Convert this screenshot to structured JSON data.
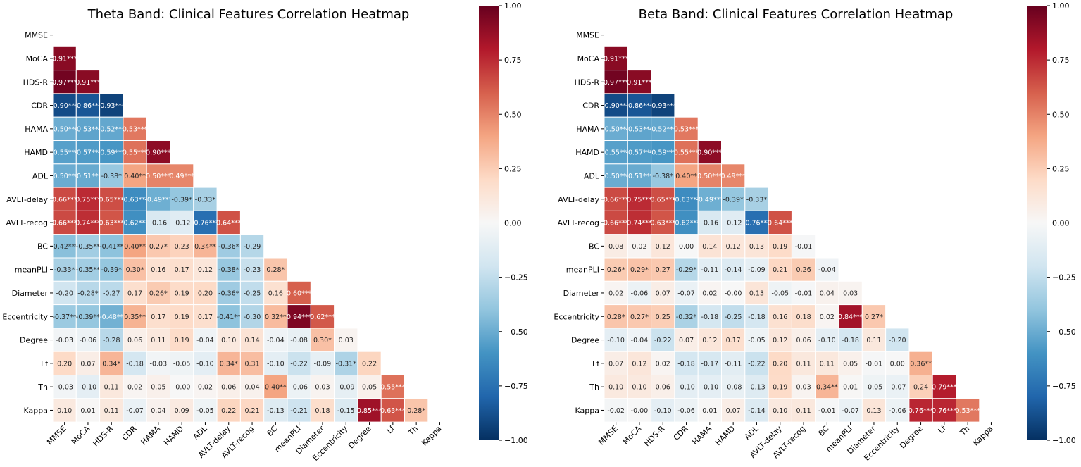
{
  "chart_data": [
    {
      "type": "heatmap",
      "title": "Theta Band: Clinical Features Correlation Heatmap",
      "labels": [
        "MMSE",
        "MoCA",
        "HDS-R",
        "CDR",
        "HAMA",
        "HAMD",
        "ADL",
        "AVLT-delay",
        "AVLT-recog",
        "BC",
        "meanPLI",
        "Diameter",
        "Eccentricity",
        "Degree",
        "Lf",
        "Th",
        "Kappa"
      ],
      "colormap": "RdBu_r",
      "vlim": [
        -1,
        1
      ],
      "colorbar_ticks": [
        "1.00",
        "0.75",
        "0.50",
        "0.25",
        "0.00",
        "−0.25",
        "−0.50",
        "−0.75",
        "−1.00"
      ],
      "lower_triangle_annotations": [
        [],
        [
          "0.91***"
        ],
        [
          "0.97***",
          "0.91***"
        ],
        [
          "-0.90***",
          "-0.86***",
          "-0.93***"
        ],
        [
          "-0.50***",
          "-0.53***",
          "-0.52***",
          "0.53***"
        ],
        [
          "-0.55***",
          "-0.57***",
          "-0.59***",
          "0.55***",
          "0.90***"
        ],
        [
          "-0.50***",
          "-0.51***",
          "-0.38*",
          "0.40**",
          "0.50***",
          "0.49***"
        ],
        [
          "0.66***",
          "0.75***",
          "0.65***",
          "-0.63***",
          "-0.49***",
          "-0.39*",
          "-0.33*"
        ],
        [
          "0.66***",
          "0.74***",
          "0.63***",
          "-0.62***",
          "-0.16",
          "-0.12",
          "-0.76***",
          "0.64***"
        ],
        [
          "-0.42***",
          "-0.35**",
          "-0.41**",
          "0.40**",
          "0.27*",
          "0.23",
          "0.34**",
          "-0.36*",
          "-0.29"
        ],
        [
          "-0.33*",
          "-0.35**",
          "-0.39*",
          "0.30*",
          "0.16",
          "0.17",
          "0.12",
          "-0.38*",
          "-0.23",
          "0.28*"
        ],
        [
          "-0.20",
          "-0.28*",
          "-0.27",
          "0.17",
          "0.26*",
          "0.19",
          "0.20",
          "-0.36*",
          "-0.25",
          "0.16",
          "0.60***"
        ],
        [
          "-0.37**",
          "-0.39**",
          "-0.48**",
          "0.35**",
          "0.17",
          "0.19",
          "0.17",
          "-0.41**",
          "-0.30",
          "0.32**",
          "0.94***",
          "0.62***"
        ],
        [
          "-0.03",
          "-0.06",
          "-0.28",
          "0.06",
          "0.11",
          "0.19",
          "-0.04",
          "0.10",
          "0.14",
          "-0.04",
          "-0.08",
          "0.30*",
          "0.03"
        ],
        [
          "0.20",
          "0.07",
          "0.34*",
          "-0.18",
          "-0.03",
          "-0.05",
          "-0.10",
          "0.34*",
          "0.31",
          "-0.10",
          "-0.22",
          "-0.09",
          "-0.31*",
          "0.22"
        ],
        [
          "-0.03",
          "-0.10",
          "0.11",
          "0.02",
          "0.05",
          "-0.00",
          "0.02",
          "0.06",
          "0.04",
          "0.40**",
          "-0.06",
          "0.03",
          "-0.09",
          "0.05",
          "0.55***"
        ],
        [
          "0.10",
          "0.01",
          "0.11",
          "-0.07",
          "0.04",
          "0.09",
          "-0.05",
          "0.22",
          "0.21",
          "-0.13",
          "-0.21",
          "0.18",
          "-0.15",
          "0.85***",
          "0.63***",
          "0.28*"
        ]
      ]
    },
    {
      "type": "heatmap",
      "title": "Beta Band: Clinical Features Correlation Heatmap",
      "labels": [
        "MMSE",
        "MoCA",
        "HDS-R",
        "CDR",
        "HAMA",
        "HAMD",
        "ADL",
        "AVLT-delay",
        "AVLT-recog",
        "BC",
        "meanPLI",
        "Diameter",
        "Eccentricity",
        "Degree",
        "Lf",
        "Th",
        "Kappa"
      ],
      "colormap": "RdBu_r",
      "vlim": [
        -1,
        1
      ],
      "colorbar_ticks": [
        "1.00",
        "0.75",
        "0.50",
        "0.25",
        "0.00",
        "−0.25",
        "−0.50",
        "−0.75",
        "−1.00"
      ],
      "lower_triangle_annotations": [
        [],
        [
          "0.91***"
        ],
        [
          "0.97***",
          "0.91***"
        ],
        [
          "-0.90***",
          "-0.86***",
          "-0.93***"
        ],
        [
          "-0.50***",
          "-0.53***",
          "-0.52***",
          "0.53***"
        ],
        [
          "-0.55***",
          "-0.57***",
          "-0.59***",
          "0.55***",
          "0.90***"
        ],
        [
          "-0.50***",
          "-0.51***",
          "-0.38*",
          "0.40**",
          "0.50***",
          "0.49***"
        ],
        [
          "0.66***",
          "0.75***",
          "0.65***",
          "-0.63***",
          "-0.49***",
          "-0.39*",
          "-0.33*"
        ],
        [
          "0.66***",
          "0.74***",
          "0.63***",
          "-0.62***",
          "-0.16",
          "-0.12",
          "-0.76***",
          "0.64***"
        ],
        [
          "0.08",
          "0.02",
          "0.12",
          "0.00",
          "0.14",
          "0.12",
          "0.13",
          "0.19",
          "-0.01"
        ],
        [
          "0.26*",
          "0.29*",
          "0.27",
          "-0.29*",
          "-0.11",
          "-0.14",
          "-0.09",
          "0.21",
          "0.26",
          "-0.04"
        ],
        [
          "0.02",
          "-0.06",
          "0.07",
          "-0.07",
          "0.02",
          "-0.00",
          "0.13",
          "-0.05",
          "-0.01",
          "0.04",
          "0.03"
        ],
        [
          "0.28*",
          "0.27*",
          "0.25",
          "-0.32*",
          "-0.18",
          "-0.25",
          "-0.18",
          "0.16",
          "0.18",
          "0.02",
          "0.84***",
          "0.27*"
        ],
        [
          "-0.10",
          "-0.04",
          "-0.22",
          "0.07",
          "0.12",
          "0.17",
          "-0.05",
          "0.12",
          "0.06",
          "-0.10",
          "-0.18",
          "0.11",
          "-0.20"
        ],
        [
          "0.07",
          "0.12",
          "0.02",
          "-0.18",
          "-0.17",
          "-0.11",
          "-0.22",
          "0.20",
          "0.11",
          "0.11",
          "0.05",
          "-0.01",
          "0.00",
          "0.36**"
        ],
        [
          "0.10",
          "0.10",
          "0.06",
          "-0.10",
          "-0.10",
          "-0.08",
          "-0.13",
          "0.19",
          "0.03",
          "0.34**",
          "0.01",
          "-0.05",
          "-0.07",
          "0.24",
          "0.79***"
        ],
        [
          "-0.02",
          "-0.00",
          "-0.10",
          "-0.06",
          "0.01",
          "0.07",
          "-0.14",
          "0.10",
          "0.11",
          "-0.01",
          "-0.07",
          "0.13",
          "-0.06",
          "0.76***",
          "0.76***",
          "0.53***"
        ]
      ]
    }
  ]
}
